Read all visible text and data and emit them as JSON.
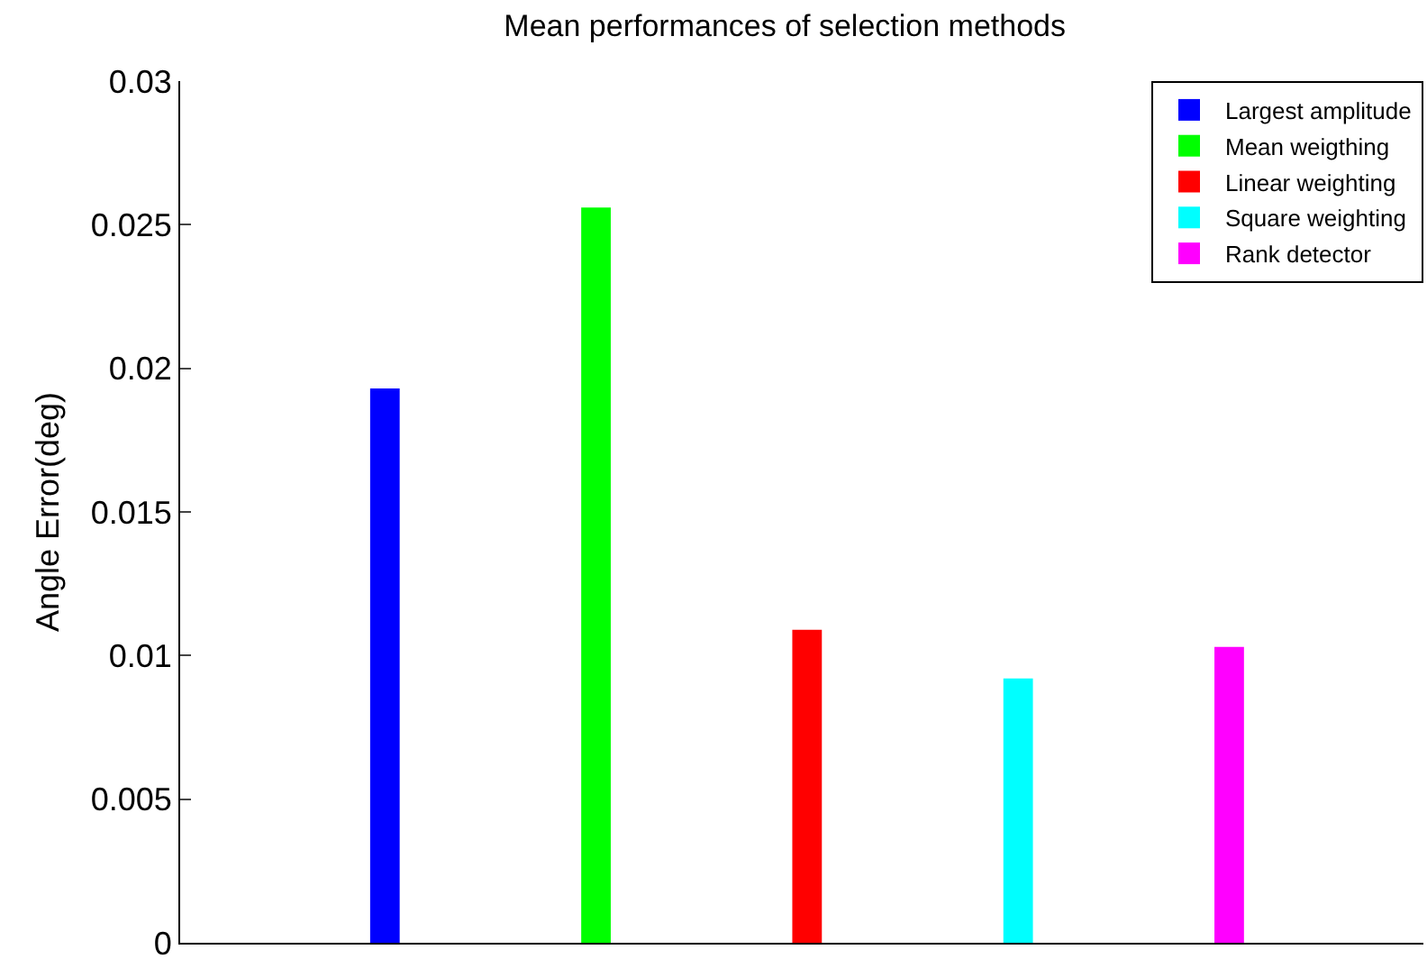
{
  "chart_data": {
    "type": "bar",
    "title": "Mean performances of selection methods",
    "ylabel": "Angle Error(deg)",
    "categories": [
      null,
      null,
      null,
      null,
      null
    ],
    "series": [
      {
        "name": "Largest amplitude",
        "color": "#0000ff",
        "values": [
          0.0193,
          null,
          null,
          null,
          null
        ]
      },
      {
        "name": "Mean weigthing",
        "color": "#00ff00",
        "values": [
          null,
          0.0256,
          null,
          null,
          null
        ]
      },
      {
        "name": "Linear weighting",
        "color": "#ff0000",
        "values": [
          null,
          null,
          0.0109,
          null,
          null
        ]
      },
      {
        "name": "Square weighting",
        "color": "#00ffff",
        "values": [
          null,
          null,
          null,
          0.0092,
          null
        ]
      },
      {
        "name": "Rank detector",
        "color": "#ff00ff",
        "values": [
          null,
          null,
          null,
          null,
          0.0103
        ]
      }
    ],
    "ylim": [
      0,
      0.03
    ],
    "yticks": [
      0,
      0.005,
      0.01,
      0.015,
      0.02,
      0.025,
      0.03
    ],
    "grid": false,
    "legend": "top right"
  }
}
